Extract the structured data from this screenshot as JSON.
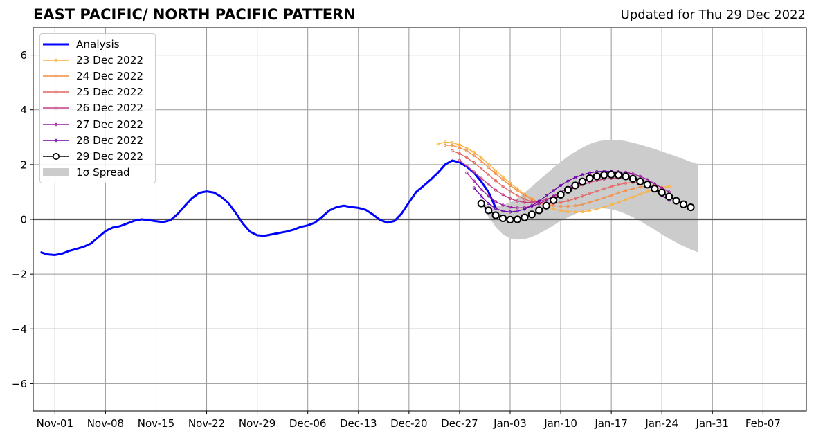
{
  "header": {
    "title": "EAST PACIFIC/ NORTH PACIFIC PATTERN",
    "updated": "Updated for Thu 29 Dec 2022"
  },
  "chart_data": {
    "type": "line",
    "title": "EAST PACIFIC/ NORTH PACIFIC PATTERN",
    "subtitle": "Updated for Thu 29 Dec 2022",
    "xlabel": "",
    "ylabel": "",
    "xlim": [
      "2022-10-29",
      "2023-02-13"
    ],
    "ylim": [
      -7,
      7
    ],
    "x_ticks": [
      "Nov-01",
      "Nov-08",
      "Nov-15",
      "Nov-22",
      "Nov-29",
      "Dec-06",
      "Dec-13",
      "Dec-20",
      "Dec-27",
      "Jan-03",
      "Jan-10",
      "Jan-17",
      "Jan-24",
      "Jan-31",
      "Feb-07"
    ],
    "y_ticks": [
      "−6",
      "−4",
      "−2",
      "0",
      "2",
      "4",
      "6"
    ],
    "grid": true,
    "legend_position": "top-left",
    "series": [
      {
        "name": "Analysis",
        "color": "#0000ff",
        "start_date": "2022-10-30",
        "values": [
          -1.2,
          -1.28,
          -1.3,
          -1.25,
          -1.15,
          -1.08,
          -1.0,
          -0.88,
          -0.65,
          -0.43,
          -0.3,
          -0.25,
          -0.15,
          -0.05,
          0.0,
          -0.03,
          -0.07,
          -0.1,
          -0.03,
          0.2,
          0.5,
          0.78,
          0.97,
          1.02,
          0.98,
          0.83,
          0.6,
          0.25,
          -0.15,
          -0.45,
          -0.58,
          -0.6,
          -0.55,
          -0.5,
          -0.45,
          -0.38,
          -0.28,
          -0.22,
          -0.12,
          0.1,
          0.33,
          0.45,
          0.5,
          0.45,
          0.42,
          0.35,
          0.18,
          -0.02,
          -0.12,
          -0.06,
          0.22,
          0.62,
          1.0,
          1.22,
          1.45,
          1.7,
          2.0,
          2.15,
          2.08,
          1.92,
          1.7,
          1.38,
          1.0,
          0.42
        ]
      },
      {
        "name": "23 Dec 2022",
        "color": "#fcb13b",
        "start_date": "2022-12-24",
        "values": [
          2.75,
          2.82,
          2.8,
          2.72,
          2.6,
          2.45,
          2.25,
          2.02,
          1.78,
          1.55,
          1.32,
          1.12,
          0.92,
          0.75,
          0.6,
          0.48,
          0.38,
          0.32,
          0.28,
          0.27,
          0.28,
          0.32,
          0.38,
          0.45,
          0.53,
          0.62,
          0.72,
          0.82,
          0.92,
          1.02,
          1.1,
          1.17,
          1.2
        ]
      },
      {
        "name": "24 Dec 2022",
        "color": "#f48d45",
        "start_date": "2022-12-25",
        "values": [
          2.7,
          2.7,
          2.62,
          2.5,
          2.33,
          2.13,
          1.9,
          1.67,
          1.45,
          1.24,
          1.05,
          0.88,
          0.74,
          0.63,
          0.55,
          0.5,
          0.48,
          0.48,
          0.5,
          0.55,
          0.62,
          0.7,
          0.79,
          0.88,
          0.97,
          1.05,
          1.12,
          1.18,
          1.22,
          1.23
        ]
      },
      {
        "name": "25 Dec 2022",
        "color": "#e26561",
        "start_date": "2022-12-26",
        "values": [
          2.5,
          2.4,
          2.25,
          2.07,
          1.85,
          1.63,
          1.41,
          1.2,
          1.02,
          0.87,
          0.74,
          0.65,
          0.6,
          0.58,
          0.58,
          0.62,
          0.68,
          0.76,
          0.85,
          0.94,
          1.03,
          1.12,
          1.2,
          1.27,
          1.32,
          1.35,
          1.35,
          1.32
        ]
      },
      {
        "name": "26 Dec 2022",
        "color": "#c33d80",
        "start_date": "2022-12-27",
        "values": [
          2.15,
          1.95,
          1.73,
          1.5,
          1.28,
          1.07,
          0.9,
          0.76,
          0.67,
          0.62,
          0.62,
          0.66,
          0.73,
          0.83,
          0.94,
          1.05,
          1.16,
          1.26,
          1.35,
          1.42,
          1.47,
          1.5,
          1.51,
          1.49,
          1.45,
          1.38,
          1.28
        ]
      },
      {
        "name": "27 Dec 2022",
        "color": "#9a179b",
        "start_date": "2022-12-28",
        "values": [
          1.7,
          1.4,
          1.1,
          0.85,
          0.65,
          0.52,
          0.45,
          0.42,
          0.43,
          0.48,
          0.57,
          0.7,
          0.85,
          1.0,
          1.15,
          1.3,
          1.43,
          1.54,
          1.63,
          1.69,
          1.73,
          1.74,
          1.72,
          1.66,
          1.57,
          1.45,
          1.3,
          1.15,
          1.0
        ]
      },
      {
        "name": "28 Dec 2022",
        "color": "#6a00a8",
        "start_date": "2022-12-29",
        "values": [
          1.15,
          0.85,
          0.58,
          0.4,
          0.3,
          0.27,
          0.3,
          0.37,
          0.5,
          0.67,
          0.86,
          1.05,
          1.24,
          1.4,
          1.53,
          1.63,
          1.7,
          1.74,
          1.76,
          1.75,
          1.71,
          1.64,
          1.54,
          1.41,
          1.25,
          1.07,
          0.88,
          0.7
        ]
      },
      {
        "name": "29 Dec 2022",
        "color": "#000000",
        "start_date": "2022-12-30",
        "values": [
          0.58,
          0.33,
          0.15,
          0.04,
          -0.01,
          0.0,
          0.07,
          0.18,
          0.33,
          0.5,
          0.7,
          0.9,
          1.08,
          1.24,
          1.38,
          1.5,
          1.57,
          1.62,
          1.64,
          1.62,
          1.57,
          1.48,
          1.38,
          1.27,
          1.12,
          0.98,
          0.83,
          0.68,
          0.55,
          0.44
        ]
      }
    ],
    "spread": {
      "name": "1σ Spread",
      "color": "#cccccc",
      "start_date": "2022-12-30",
      "upper": [
        0.6,
        0.5,
        0.48,
        0.52,
        0.62,
        0.78,
        0.98,
        1.2,
        1.43,
        1.66,
        1.89,
        2.1,
        2.3,
        2.47,
        2.62,
        2.75,
        2.84,
        2.89,
        2.91,
        2.9,
        2.86,
        2.8,
        2.73,
        2.65,
        2.57,
        2.48,
        2.39,
        2.3,
        2.2,
        2.1,
        2.02
      ],
      "lower": [
        0.55,
        0.1,
        -0.28,
        -0.55,
        -0.7,
        -0.74,
        -0.72,
        -0.64,
        -0.52,
        -0.38,
        -0.22,
        -0.06,
        0.08,
        0.2,
        0.3,
        0.36,
        0.4,
        0.4,
        0.37,
        0.3,
        0.2,
        0.08,
        -0.06,
        -0.22,
        -0.38,
        -0.55,
        -0.7,
        -0.85,
        -0.98,
        -1.1,
        -1.2
      ]
    }
  }
}
